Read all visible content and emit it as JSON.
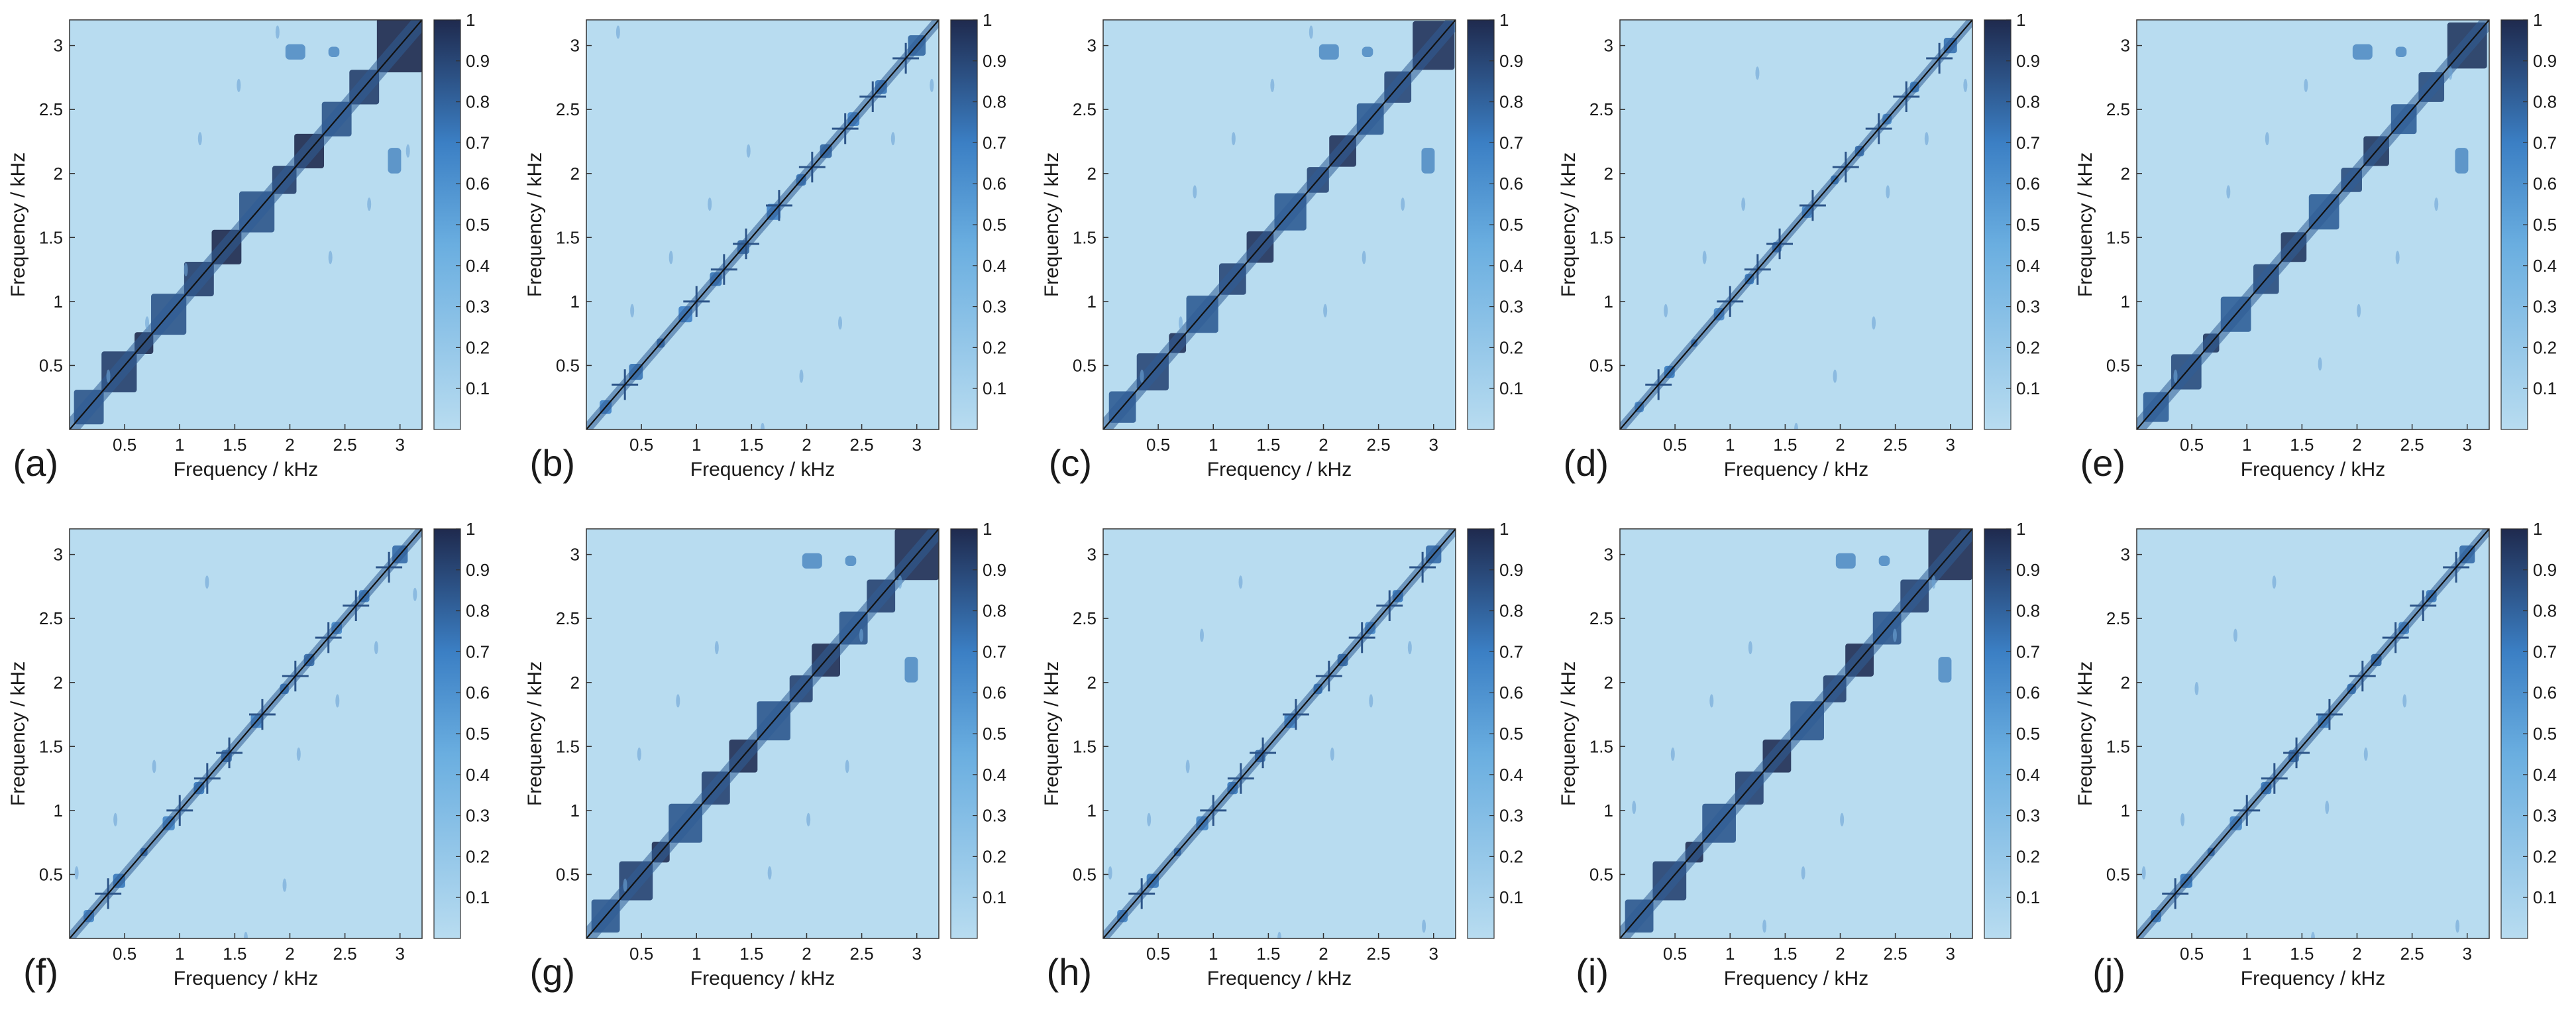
{
  "figure": {
    "xlabel": "Frequency / kHz",
    "ylabel": "Frequency / kHz",
    "colorbar_ticks": [
      "0.1",
      "0.2",
      "0.3",
      "0.4",
      "0.5",
      "0.6",
      "0.7",
      "0.8",
      "0.9",
      "1"
    ],
    "colorbar_range": [
      0,
      1
    ],
    "x_ticks": [
      "0.5",
      "1",
      "1.5",
      "2",
      "2.5",
      "3"
    ],
    "y_ticks": [
      "0.5",
      "1",
      "1.5",
      "2",
      "2.5",
      "3"
    ],
    "axis_range_khz": [
      0,
      3.2
    ],
    "colormap": {
      "low": "#b8dcf0",
      "mid": "#3b7fc4",
      "high": "#1f2a4e"
    },
    "diagonal_line_color": "#111111"
  },
  "chart_data": [
    {
      "type": "heatmap",
      "label": "(a)",
      "block_strength": 1.0,
      "offdiag_clusters": true,
      "cross_artifacts": false,
      "xlabel": "Frequency / kHz",
      "ylabel": "Frequency / kHz",
      "xlim": [
        0,
        3.2
      ],
      "ylim": [
        0,
        3.2
      ],
      "zlim": [
        0,
        1
      ]
    },
    {
      "type": "heatmap",
      "label": "(b)",
      "block_strength": 0.35,
      "offdiag_clusters": false,
      "cross_artifacts": true,
      "xlabel": "Frequency / kHz",
      "ylabel": "Frequency / kHz",
      "xlim": [
        0,
        3.2
      ],
      "ylim": [
        0,
        3.2
      ],
      "zlim": [
        0,
        1
      ]
    },
    {
      "type": "heatmap",
      "label": "(c)",
      "block_strength": 0.9,
      "offdiag_clusters": true,
      "cross_artifacts": false,
      "xlabel": "Frequency / kHz",
      "ylabel": "Frequency / kHz",
      "xlim": [
        0,
        3.2
      ],
      "ylim": [
        0,
        3.2
      ],
      "zlim": [
        0,
        1
      ]
    },
    {
      "type": "heatmap",
      "label": "(d)",
      "block_strength": 0.25,
      "offdiag_clusters": false,
      "cross_artifacts": true,
      "xlabel": "Frequency / kHz",
      "ylabel": "Frequency / kHz",
      "xlim": [
        0,
        3.2
      ],
      "ylim": [
        0,
        3.2
      ],
      "zlim": [
        0,
        1
      ]
    },
    {
      "type": "heatmap",
      "label": "(e)",
      "block_strength": 0.85,
      "offdiag_clusters": true,
      "cross_artifacts": false,
      "xlabel": "Frequency / kHz",
      "ylabel": "Frequency / kHz",
      "xlim": [
        0,
        3.2
      ],
      "ylim": [
        0,
        3.2
      ],
      "zlim": [
        0,
        1
      ]
    },
    {
      "type": "heatmap",
      "label": "(f)",
      "block_strength": 0.3,
      "offdiag_clusters": false,
      "cross_artifacts": true,
      "xlabel": "Frequency / kHz",
      "ylabel": "Frequency / kHz",
      "xlim": [
        0,
        3.2
      ],
      "ylim": [
        0,
        3.2
      ],
      "zlim": [
        0,
        1
      ]
    },
    {
      "type": "heatmap",
      "label": "(g)",
      "block_strength": 0.95,
      "offdiag_clusters": true,
      "cross_artifacts": false,
      "xlabel": "Frequency / kHz",
      "ylabel": "Frequency / kHz",
      "xlim": [
        0,
        3.2
      ],
      "ylim": [
        0,
        3.2
      ],
      "zlim": [
        0,
        1
      ]
    },
    {
      "type": "heatmap",
      "label": "(h)",
      "block_strength": 0.3,
      "offdiag_clusters": false,
      "cross_artifacts": true,
      "xlabel": "Frequency / kHz",
      "ylabel": "Frequency / kHz",
      "xlim": [
        0,
        3.2
      ],
      "ylim": [
        0,
        3.2
      ],
      "zlim": [
        0,
        1
      ]
    },
    {
      "type": "heatmap",
      "label": "(i)",
      "block_strength": 0.95,
      "offdiag_clusters": true,
      "cross_artifacts": false,
      "xlabel": "Frequency / kHz",
      "ylabel": "Frequency / kHz",
      "xlim": [
        0,
        3.2
      ],
      "ylim": [
        0,
        3.2
      ],
      "zlim": [
        0,
        1
      ]
    },
    {
      "type": "heatmap",
      "label": "(j)",
      "block_strength": 0.3,
      "offdiag_clusters": false,
      "cross_artifacts": true,
      "xlabel": "Frequency / kHz",
      "ylabel": "Frequency / kHz",
      "xlim": [
        0,
        3.2
      ],
      "ylim": [
        0,
        3.2
      ],
      "zlim": [
        0,
        1
      ]
    }
  ]
}
